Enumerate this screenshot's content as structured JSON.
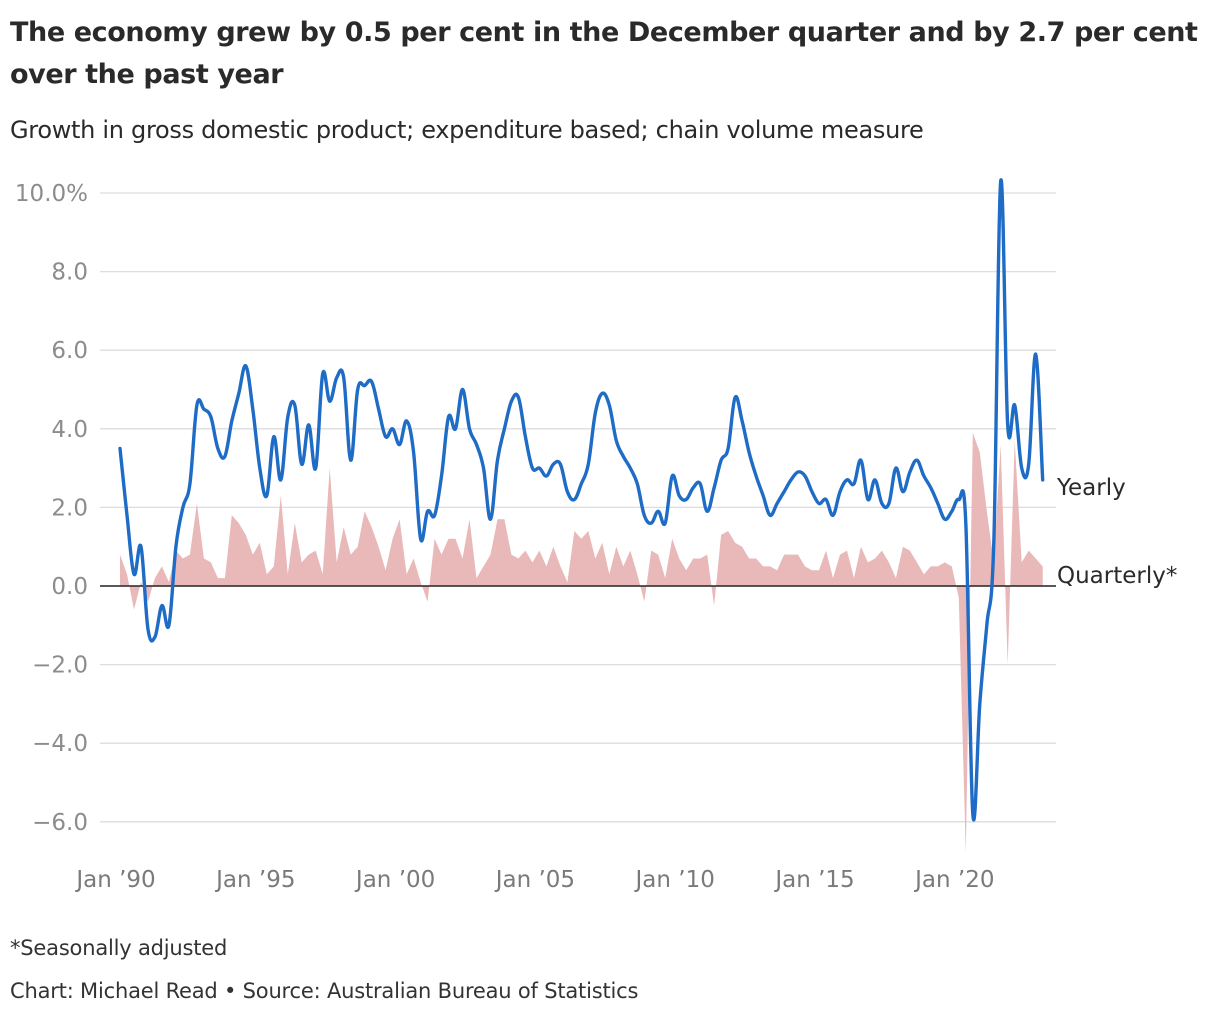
{
  "header": {
    "title": "The economy grew by 0.5 per cent in the December quarter and by 2.7 per cent over the past year",
    "subtitle": "Growth in gross domestic product; expenditure based; chain volume measure"
  },
  "footer": {
    "note": "*Seasonally adjusted",
    "credit": "Chart: Michael Read • Source: Australian Bureau of Statistics"
  },
  "colors": {
    "yearly_line": "#1f6cc6",
    "quarterly_area": "#e8b4b4",
    "gridline": "#dddddd",
    "zero_line": "#222222"
  },
  "chart_data": {
    "type": "line",
    "title": "The economy grew by 0.5 per cent in the December quarter and by 2.7 per cent over the past year",
    "subtitle": "Growth in gross domestic product; expenditure based; chain volume measure",
    "xlabel": "",
    "ylabel": "",
    "x_start": "1990-Q1",
    "x_end": "2023-Q4",
    "frequency": "quarterly",
    "ylim": [
      -6.8,
      10.5
    ],
    "y_ticks": [
      10,
      8,
      6,
      4,
      2,
      0,
      -2,
      -4,
      -6
    ],
    "y_tick_labels": [
      "10.0%",
      "8.0",
      "6.0",
      "4.0",
      "2.0",
      "0.0",
      "−2.0",
      "−4.0",
      "−6.0"
    ],
    "x_ticks": [
      {
        "x": "1990-Q1",
        "label": "Jan ’90"
      },
      {
        "x": "1995-Q1",
        "label": "Jan ’95"
      },
      {
        "x": "2000-Q1",
        "label": "Jan ’00"
      },
      {
        "x": "2005-Q1",
        "label": "Jan ’05"
      },
      {
        "x": "2010-Q1",
        "label": "Jan ’10"
      },
      {
        "x": "2015-Q1",
        "label": "Jan ’15"
      },
      {
        "x": "2020-Q1",
        "label": "Jan ’20"
      }
    ],
    "grid": true,
    "series": [
      {
        "name": "Yearly",
        "style": "line",
        "values": [
          3.5,
          1.8,
          0.3,
          1.0,
          -1.1,
          -1.3,
          -0.5,
          -1.0,
          1.0,
          2.0,
          2.6,
          4.6,
          4.5,
          4.3,
          3.5,
          3.3,
          4.2,
          4.9,
          5.6,
          4.5,
          3.0,
          2.3,
          3.8,
          2.7,
          4.3,
          4.6,
          3.1,
          4.1,
          3.0,
          5.4,
          4.7,
          5.3,
          5.3,
          3.2,
          5.0,
          5.1,
          5.2,
          4.5,
          3.8,
          4.0,
          3.6,
          4.2,
          3.4,
          1.2,
          1.9,
          1.8,
          2.8,
          4.3,
          4.0,
          5.0,
          4.0,
          3.6,
          3.0,
          1.7,
          3.2,
          4.0,
          4.7,
          4.8,
          3.8,
          3.0,
          3.0,
          2.8,
          3.1,
          3.1,
          2.4,
          2.2,
          2.6,
          3.1,
          4.4,
          4.9,
          4.6,
          3.7,
          3.3,
          3.0,
          2.6,
          1.8,
          1.6,
          1.9,
          1.6,
          2.8,
          2.3,
          2.2,
          2.5,
          2.6,
          1.9,
          2.5,
          3.2,
          3.5,
          4.8,
          4.2,
          3.4,
          2.8,
          2.3,
          1.8,
          2.1,
          2.4,
          2.7,
          2.9,
          2.8,
          2.4,
          2.1,
          2.2,
          1.8,
          2.4,
          2.7,
          2.6,
          3.2,
          2.2,
          2.7,
          2.1,
          2.1,
          3.0,
          2.4,
          2.9,
          3.2,
          2.8,
          2.5,
          2.1,
          1.7,
          1.9,
          2.2,
          1.6,
          -5.8,
          -3.0,
          -1.0,
          1.1,
          10.3,
          4.1,
          4.6,
          3.0,
          3.1,
          5.9,
          2.7
        ]
      },
      {
        "name": "Quarterly*",
        "style": "area",
        "values": [
          0.8,
          0.3,
          -0.6,
          0.1,
          -0.4,
          0.2,
          0.5,
          0.1,
          0.9,
          0.7,
          0.8,
          2.1,
          0.7,
          0.6,
          0.2,
          0.2,
          1.8,
          1.6,
          1.3,
          0.8,
          1.1,
          0.3,
          0.5,
          2.3,
          0.3,
          1.6,
          0.6,
          0.8,
          0.9,
          0.3,
          3.0,
          0.6,
          1.5,
          0.8,
          1.0,
          1.9,
          1.5,
          1.0,
          0.4,
          1.2,
          1.7,
          0.3,
          0.7,
          0.1,
          -0.4,
          1.2,
          0.8,
          1.2,
          1.2,
          0.7,
          1.7,
          0.2,
          0.5,
          0.8,
          1.7,
          1.7,
          0.8,
          0.7,
          0.9,
          0.6,
          0.9,
          0.5,
          1.0,
          0.5,
          0.1,
          1.4,
          1.2,
          1.4,
          0.7,
          1.1,
          0.3,
          1.0,
          0.5,
          0.9,
          0.3,
          -0.4,
          0.9,
          0.8,
          0.2,
          1.2,
          0.7,
          0.4,
          0.7,
          0.7,
          0.8,
          -0.5,
          1.3,
          1.4,
          1.1,
          1.0,
          0.7,
          0.7,
          0.5,
          0.5,
          0.4,
          0.8,
          0.8,
          0.8,
          0.5,
          0.4,
          0.4,
          0.9,
          0.2,
          0.8,
          0.9,
          0.2,
          1.0,
          0.6,
          0.7,
          0.9,
          0.6,
          0.2,
          1.0,
          0.9,
          0.6,
          0.3,
          0.5,
          0.5,
          0.6,
          0.5,
          -0.3,
          -6.8,
          3.9,
          3.4,
          1.9,
          0.6,
          3.6,
          -2.0,
          3.7,
          0.6,
          0.9,
          0.7,
          0.5
        ]
      }
    ]
  }
}
